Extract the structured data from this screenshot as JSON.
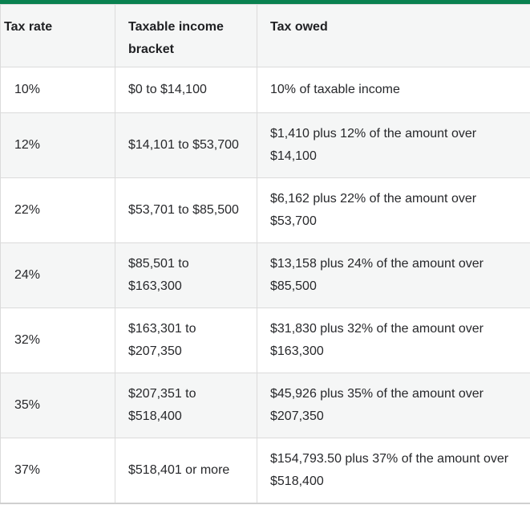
{
  "chart_data": {
    "type": "table",
    "columns": [
      "Tax rate",
      "Taxable income bracket",
      "Tax owed"
    ],
    "rows": [
      {
        "rate": "10%",
        "bracket": "$0 to $14,100",
        "owed": "10% of taxable income"
      },
      {
        "rate": "12%",
        "bracket": "$14,101 to $53,700",
        "owed": "$1,410 plus 12% of the amount over $14,100"
      },
      {
        "rate": "22%",
        "bracket": "$53,701 to $85,500",
        "owed": "$6,162 plus 22% of the amount over $53,700"
      },
      {
        "rate": "24%",
        "bracket": "$85,501 to $163,300",
        "owed": "$13,158 plus 24% of the amount over $85,500"
      },
      {
        "rate": "32%",
        "bracket": "$163,301 to $207,350",
        "owed": "$31,830 plus 32% of the amount over $163,300"
      },
      {
        "rate": "35%",
        "bracket": "$207,351 to $518,400",
        "owed": "$45,926 plus 35% of the amount over $207,350"
      },
      {
        "rate": "37%",
        "bracket": "$518,401 or more",
        "owed": "$154,793.50 plus 37% of the amount over $518,400"
      }
    ]
  },
  "colors": {
    "accent_green": "#0A8150",
    "header_bg": "#F5F6F6",
    "row_bg": "#FFFFFF",
    "row_alt_bg": "#F5F6F6",
    "grid_border": "#DBDBDB",
    "bottom_border": "#CFCFCF",
    "text": "#27282B"
  }
}
